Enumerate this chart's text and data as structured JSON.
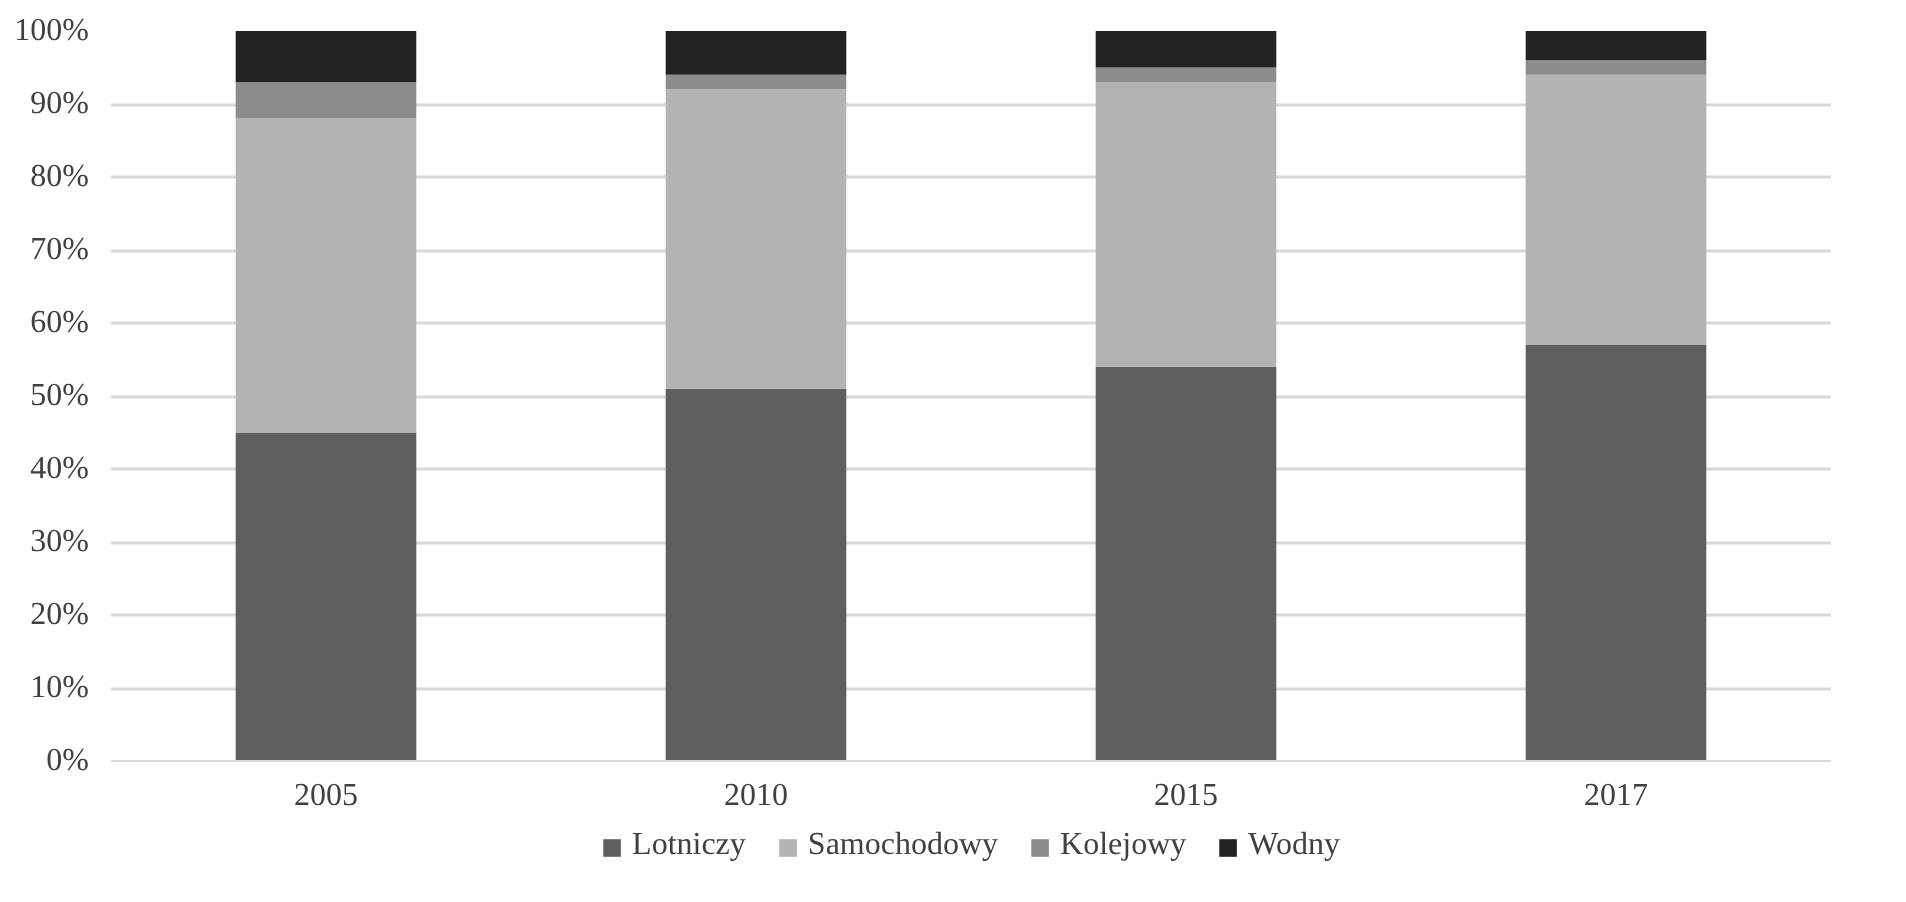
{
  "chart_data": {
    "type": "bar",
    "stacked": true,
    "categories": [
      "2005",
      "2010",
      "2015",
      "2017"
    ],
    "series": [
      {
        "name": "Lotniczy",
        "color": "#5f5f5f",
        "values": [
          45,
          51,
          54,
          57
        ]
      },
      {
        "name": "Samochodowy",
        "color": "#b3b3b3",
        "values": [
          43,
          41,
          39,
          37
        ]
      },
      {
        "name": "Kolejowy",
        "color": "#8c8c8c",
        "values": [
          5,
          2,
          2,
          2
        ]
      },
      {
        "name": "Wodny",
        "color": "#222222",
        "values": [
          7,
          6,
          5,
          4
        ]
      }
    ],
    "ylim": [
      0,
      100
    ],
    "yticks": [
      {
        "value": 0,
        "label": "0%"
      },
      {
        "value": 10,
        "label": "10%"
      },
      {
        "value": 20,
        "label": "20%"
      },
      {
        "value": 30,
        "label": "30%"
      },
      {
        "value": 40,
        "label": "40%"
      },
      {
        "value": 50,
        "label": "50%"
      },
      {
        "value": 60,
        "label": "60%"
      },
      {
        "value": 70,
        "label": "70%"
      },
      {
        "value": 80,
        "label": "80%"
      },
      {
        "value": 90,
        "label": "90%"
      },
      {
        "value": 100,
        "label": "100%"
      }
    ],
    "grid": "y",
    "legend": "bottom"
  }
}
